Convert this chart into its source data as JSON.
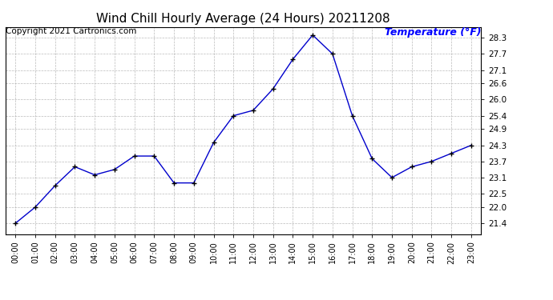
{
  "title": "Wind Chill Hourly Average (24 Hours) 20211208",
  "copyright_text": "Copyright 2021 Cartronics.com",
  "ylabel": "Temperature (°F)",
  "hours": [
    "00:00",
    "01:00",
    "02:00",
    "03:00",
    "04:00",
    "05:00",
    "06:00",
    "07:00",
    "08:00",
    "09:00",
    "10:00",
    "11:00",
    "12:00",
    "13:00",
    "14:00",
    "15:00",
    "16:00",
    "17:00",
    "18:00",
    "19:00",
    "20:00",
    "21:00",
    "22:00",
    "23:00"
  ],
  "values": [
    21.4,
    22.0,
    22.8,
    23.5,
    23.2,
    23.4,
    23.9,
    23.9,
    22.9,
    22.9,
    24.4,
    25.4,
    25.6,
    26.4,
    27.5,
    28.4,
    27.7,
    25.4,
    23.8,
    23.1,
    23.5,
    23.7,
    24.0,
    24.3
  ],
  "line_color": "#0000cc",
  "marker": "+",
  "marker_size": 5,
  "marker_color": "#000000",
  "background_color": "#ffffff",
  "grid_color": "#aaaaaa",
  "yticks": [
    21.4,
    22.0,
    22.5,
    23.1,
    23.7,
    24.3,
    24.9,
    25.4,
    26.0,
    26.6,
    27.1,
    27.7,
    28.3
  ],
  "ylim": [
    21.0,
    28.7
  ],
  "title_fontsize": 11,
  "ylabel_color": "#0000ff",
  "copyright_color": "#000000",
  "copyright_fontsize": 7.5,
  "ylabel_fontsize": 9
}
